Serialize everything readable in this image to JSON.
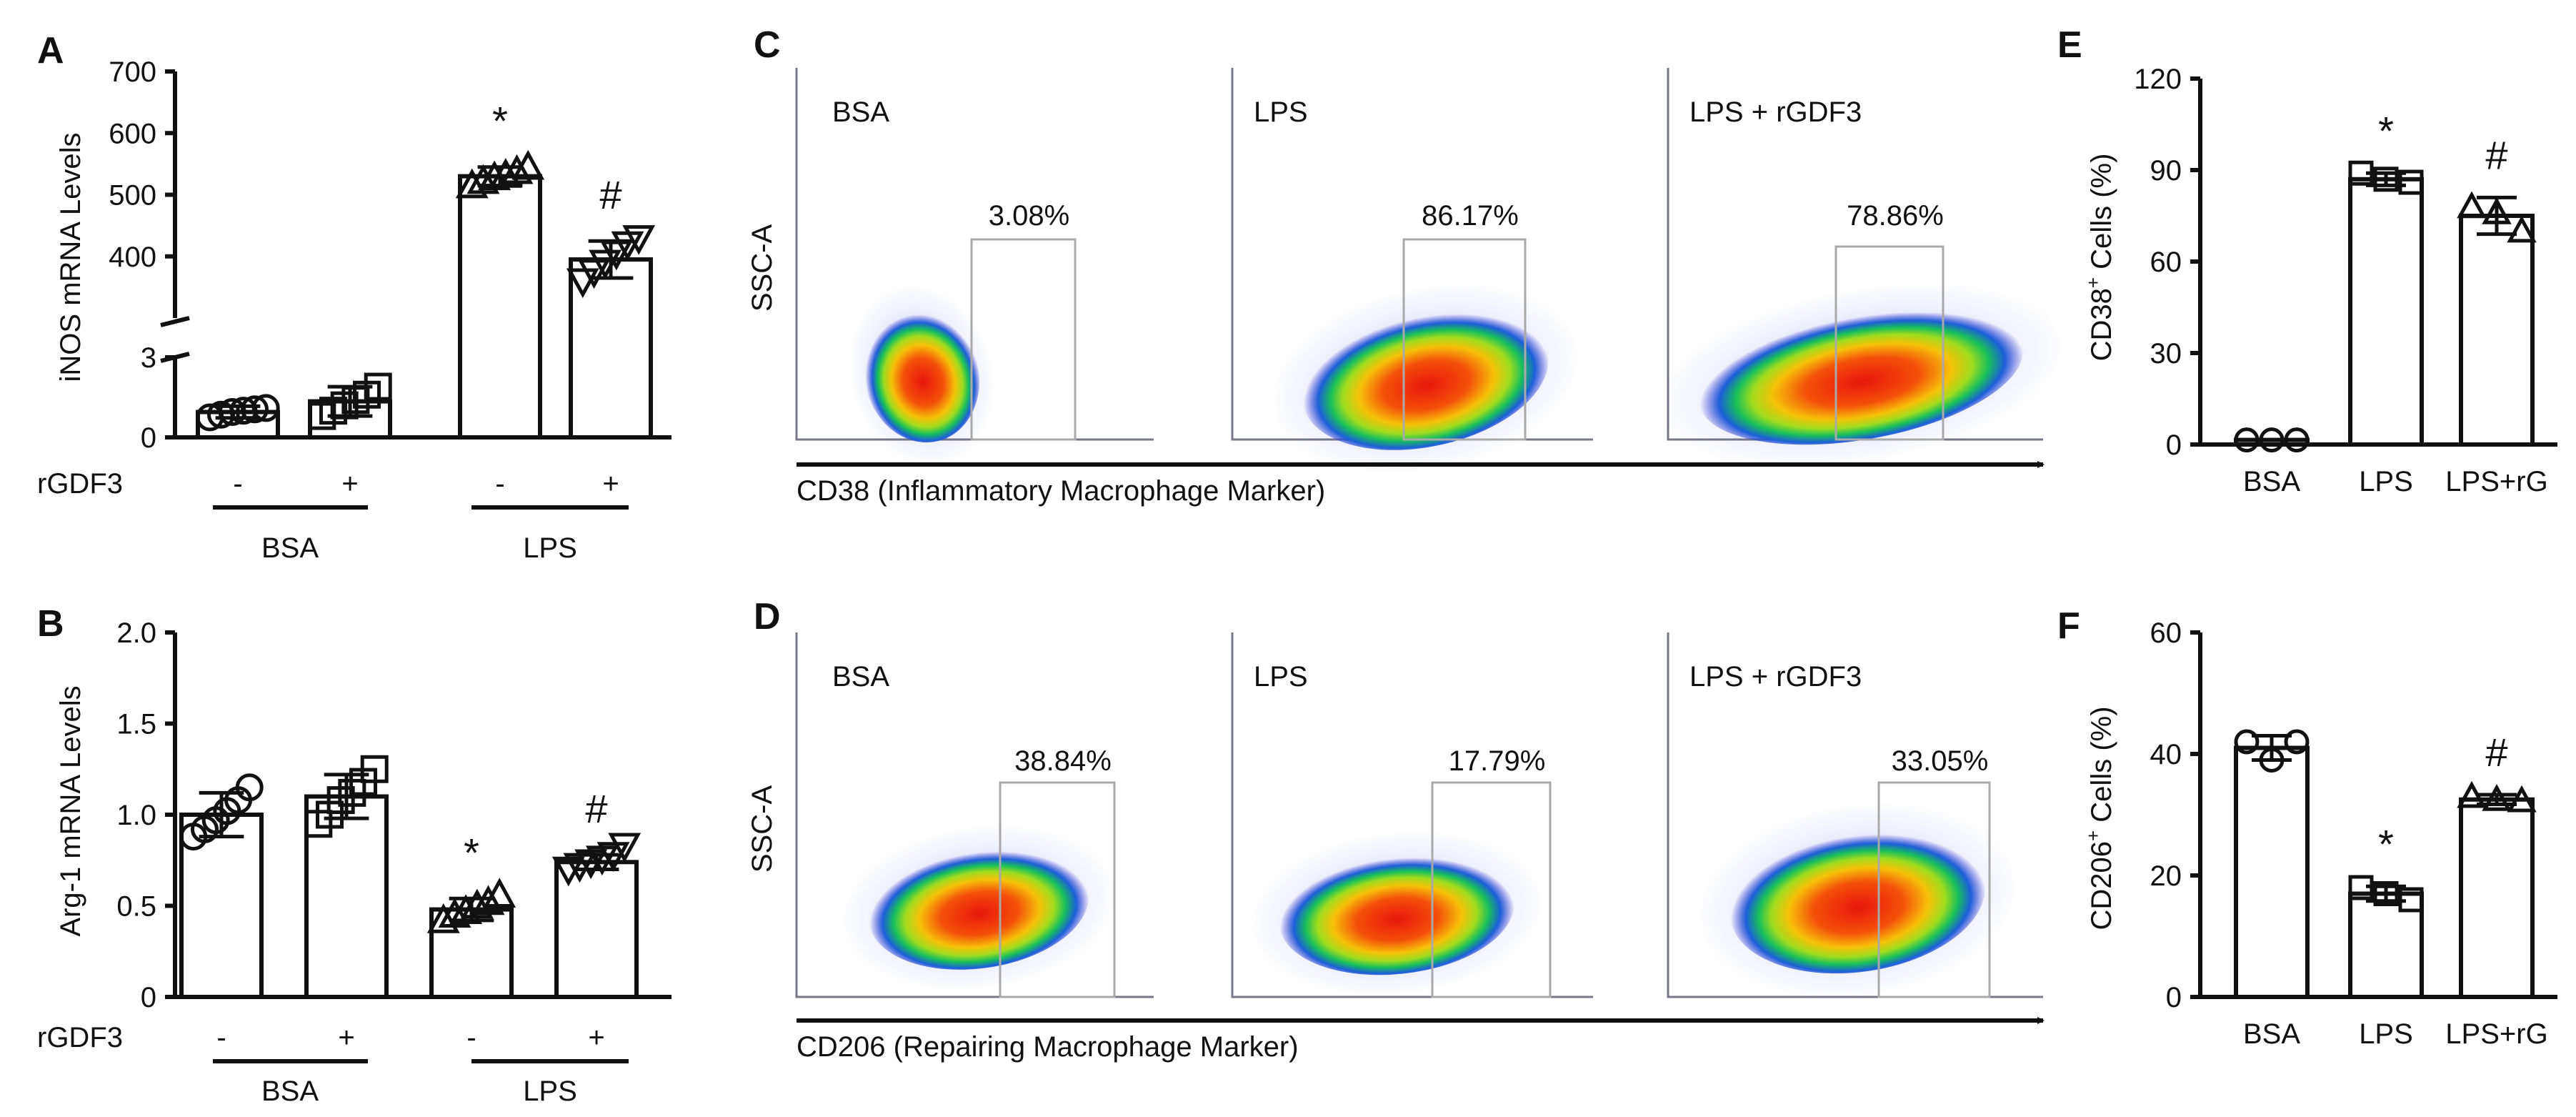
{
  "colors": {
    "ink": "#111111",
    "gate": "#a9a9a9",
    "flow_axis": "#777788"
  },
  "chart_data": [
    {
      "id": "A",
      "type": "bar",
      "panel_letter": "A",
      "ylabel": "iNOS mRNA Levels",
      "axis_break": true,
      "lower_segment": {
        "ylim": [
          0,
          3
        ],
        "ticks": [
          "0",
          "3"
        ]
      },
      "upper_segment": {
        "ylim": [
          300,
          700
        ],
        "ticks": [
          "400",
          "500",
          "600",
          "700"
        ]
      },
      "treatment_label": "rGDF3",
      "treatment_marks": [
        "-",
        "+",
        "-",
        "+"
      ],
      "groups": [
        {
          "label": "BSA",
          "bars": [
            0,
            1
          ]
        },
        {
          "label": "LPS",
          "bars": [
            2,
            3
          ]
        }
      ],
      "series": [
        {
          "name": "BSA -",
          "value": 0.95,
          "error": 0.22,
          "marker": "circle",
          "points": [
            0.75,
            0.85,
            0.95,
            1.0,
            1.05,
            1.1
          ],
          "annotation": ""
        },
        {
          "name": "BSA +",
          "value": 1.35,
          "error": 0.55,
          "marker": "square",
          "points": [
            0.8,
            1.0,
            1.2,
            1.4,
            1.6,
            1.9
          ],
          "annotation": ""
        },
        {
          "name": "LPS -",
          "value": 530,
          "error": 15,
          "marker": "triangle",
          "points": [
            515,
            522,
            528,
            532,
            538,
            545
          ],
          "annotation": "*"
        },
        {
          "name": "LPS +",
          "value": 395,
          "error": 30,
          "marker": "triangle-down",
          "points": [
            360,
            375,
            390,
            405,
            420,
            430
          ],
          "annotation": "#"
        }
      ]
    },
    {
      "id": "B",
      "type": "bar",
      "panel_letter": "B",
      "ylabel": "Arg-1 mRNA Levels",
      "ylim": [
        0,
        2.0
      ],
      "ticks": [
        "0",
        "0.5",
        "1.0",
        "1.5",
        "2.0"
      ],
      "treatment_label": "rGDF3",
      "treatment_marks": [
        "-",
        "+",
        "-",
        "+"
      ],
      "groups": [
        {
          "label": "BSA",
          "bars": [
            0,
            1
          ]
        },
        {
          "label": "LPS",
          "bars": [
            2,
            3
          ]
        }
      ],
      "series": [
        {
          "name": "BSA -",
          "value": 1.0,
          "error": 0.12,
          "marker": "circle",
          "points": [
            0.88,
            0.92,
            0.97,
            1.02,
            1.08,
            1.15
          ],
          "annotation": ""
        },
        {
          "name": "BSA +",
          "value": 1.1,
          "error": 0.12,
          "marker": "square",
          "points": [
            0.95,
            1.0,
            1.08,
            1.12,
            1.18,
            1.25
          ],
          "annotation": ""
        },
        {
          "name": "LPS -",
          "value": 0.48,
          "error": 0.06,
          "marker": "triangle",
          "points": [
            0.42,
            0.45,
            0.47,
            0.5,
            0.52,
            0.56
          ],
          "annotation": "*"
        },
        {
          "name": "LPS +",
          "value": 0.74,
          "error": 0.04,
          "marker": "triangle-down",
          "points": [
            0.7,
            0.72,
            0.74,
            0.76,
            0.78,
            0.83
          ],
          "annotation": "#"
        }
      ]
    },
    {
      "id": "E",
      "type": "bar",
      "panel_letter": "E",
      "ylabel_main": "CD38",
      "ylabel_sup": "+",
      "ylabel_tail": " Cells (%)",
      "ylim": [
        0,
        120
      ],
      "ticks": [
        "0",
        "30",
        "60",
        "90",
        "120"
      ],
      "categories": [
        "BSA",
        "LPS",
        "LPS+rG"
      ],
      "series": [
        {
          "name": "BSA",
          "value": 1.5,
          "error": 0,
          "marker": "circle",
          "points": [
            1.5,
            1.5,
            1.5
          ],
          "annotation": ""
        },
        {
          "name": "LPS",
          "value": 87,
          "error": 2,
          "marker": "square",
          "points": [
            89,
            87,
            86
          ],
          "annotation": "*"
        },
        {
          "name": "LPS+rG",
          "value": 75,
          "error": 6,
          "marker": "triangle",
          "points": [
            78,
            76,
            70
          ],
          "annotation": "#"
        }
      ]
    },
    {
      "id": "F",
      "type": "bar",
      "panel_letter": "F",
      "ylabel_main": "CD206",
      "ylabel_sup": "+",
      "ylabel_tail": " Cells (%)",
      "ylim": [
        0,
        60
      ],
      "ticks": [
        "0",
        "20",
        "40",
        "60"
      ],
      "categories": [
        "BSA",
        "LPS",
        "LPS+rG"
      ],
      "series": [
        {
          "name": "BSA",
          "value": 41,
          "error": 2,
          "marker": "circle",
          "points": [
            42,
            39,
            42
          ],
          "annotation": ""
        },
        {
          "name": "LPS",
          "value": 17,
          "error": 1.2,
          "marker": "square",
          "points": [
            18,
            17,
            16
          ],
          "annotation": "*"
        },
        {
          "name": "LPS+rG",
          "value": 32.5,
          "error": 0.8,
          "marker": "triangle",
          "points": [
            33,
            32.5,
            32.3
          ],
          "annotation": "#"
        }
      ]
    }
  ],
  "flow": [
    {
      "id": "C",
      "panel_letter": "C",
      "ylabel": "SSC-A",
      "xlabel": "CD38 (Inflammatory Macrophage Marker)",
      "plots": [
        {
          "title": "BSA",
          "gate_percent": "3.08%"
        },
        {
          "title": "LPS",
          "gate_percent": "86.17%"
        },
        {
          "title": "LPS + rGDF3",
          "gate_percent": "78.86%"
        }
      ]
    },
    {
      "id": "D",
      "panel_letter": "D",
      "ylabel": "SSC-A",
      "xlabel": "CD206 (Repairing Macrophage Marker)",
      "plots": [
        {
          "title": "BSA",
          "gate_percent": "38.84%"
        },
        {
          "title": "LPS",
          "gate_percent": "17.79%"
        },
        {
          "title": "LPS + rGDF3",
          "gate_percent": "33.05%"
        }
      ]
    }
  ]
}
